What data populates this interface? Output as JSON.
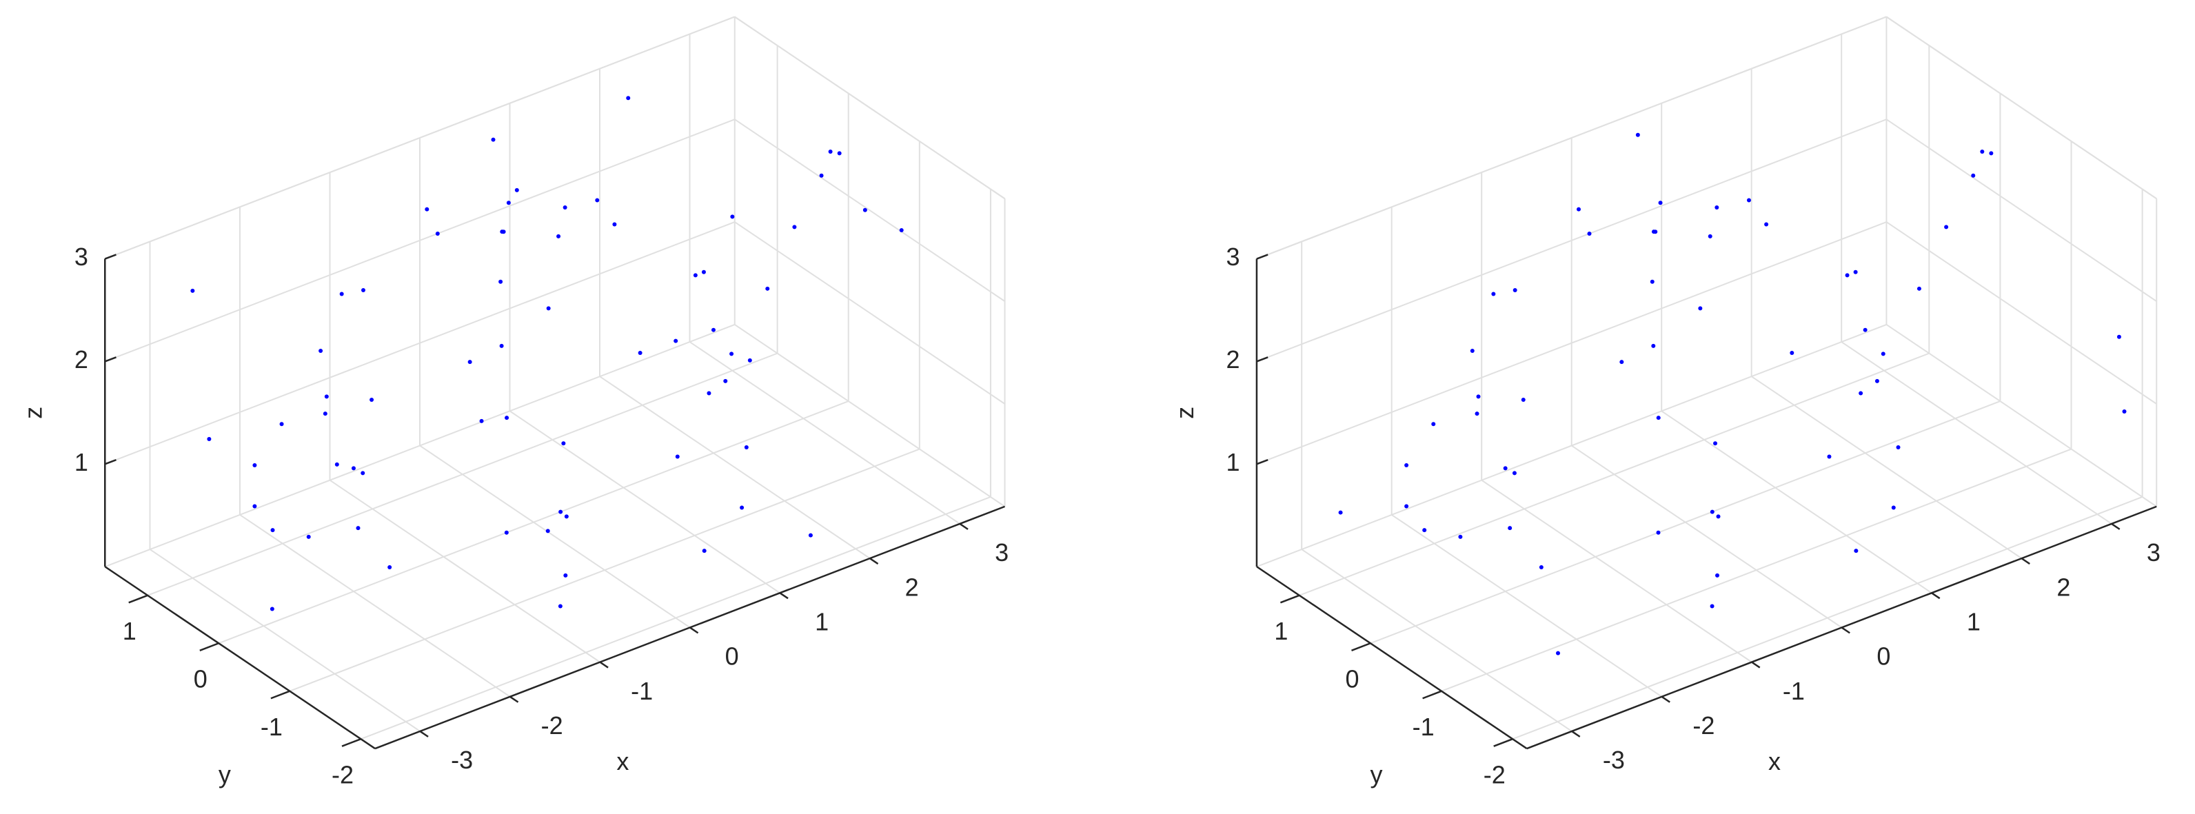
{
  "chart_data": [
    {
      "type": "scatter3",
      "xlabel": "x",
      "ylabel": "y",
      "zlabel": "z",
      "xlim": [
        -3.5,
        3.5
      ],
      "ylim": [
        -2.2,
        1.6
      ],
      "zlim": [
        0,
        3
      ],
      "xticks": [
        -3,
        -2,
        -1,
        0,
        1,
        2,
        3
      ],
      "yticks": [
        -2,
        -1,
        0,
        1
      ],
      "zticks": [
        1,
        2,
        3
      ],
      "grid": true,
      "series": [
        {
          "color": "#0000ff",
          "x": [
            1.6,
            0.8,
            -0.8,
            -1.6,
            -0.8,
            0.8,
            1.95,
            0.98,
            -0.98,
            -1.95,
            -0.98,
            0.98,
            2,
            1,
            -1,
            -2,
            -1,
            1,
            1.8,
            0.9,
            -0.9,
            -1.8,
            -0.9,
            0.9,
            1.3,
            0,
            -1.3,
            -1.3,
            0,
            1.3,
            0.9,
            -0.45,
            -0.45,
            0.35,
            -0.35,
            0,
            0,
            0.3,
            -0.3,
            -2.3,
            -2.8,
            -3.1,
            -3.1,
            -2.9,
            -2.5,
            2.2,
            2.6,
            2.9,
            3.2,
            3.4,
            3.3,
            -3,
            2.5,
            0.5,
            -2,
            3,
            -3.3,
            1.5,
            2.8,
            -1,
            0,
            3.3,
            -2.5,
            1,
            -1.5,
            2
          ],
          "y": [
            0,
            1.39,
            1.39,
            0,
            -1.39,
            -1.39,
            0,
            1.69,
            1.69,
            0,
            -1.69,
            -1.69,
            0,
            1.73,
            1.73,
            0,
            -1.73,
            -1.73,
            0,
            1.56,
            1.56,
            0,
            -1.56,
            -1.56,
            0.75,
            1.5,
            0.75,
            -0.75,
            -1.5,
            -0.75,
            0,
            0.78,
            -0.78,
            0,
            0,
            0.35,
            -0.35,
            0,
            0,
            0,
            0,
            0,
            0,
            0,
            0,
            0,
            0,
            0,
            0,
            0,
            0,
            1,
            -1.5,
            1.2,
            -1.8,
            1,
            -0.5,
            -2,
            0.5,
            1.5,
            -2,
            -1,
            1.4,
            1.5,
            -2.1,
            1.2
          ],
          "z": [
            0.1,
            0.1,
            0.1,
            0.1,
            0.1,
            0.1,
            0.6,
            0.6,
            0.6,
            0.6,
            0.6,
            0.6,
            1.2,
            1.2,
            1.2,
            1.2,
            1.2,
            1.2,
            1.8,
            1.8,
            1.8,
            1.8,
            1.8,
            1.8,
            2.35,
            2.35,
            2.35,
            2.35,
            2.35,
            2.35,
            2.6,
            2.6,
            2.6,
            2.95,
            2.95,
            2.95,
            2.95,
            0,
            0,
            2.0,
            1.9,
            1.6,
            1.2,
            0.9,
            0.7,
            0.9,
            1.4,
            1.9,
            2.3,
            2.45,
            2.5,
            2.8,
            2.9,
            3.0,
            2.5,
            1.5,
            0.5,
            0.3,
            0.4,
            0.2,
            2.7,
            2.2,
            1.0,
            2.2,
            1.4,
            2.9
          ]
        }
      ]
    },
    {
      "type": "scatter3",
      "xlabel": "x",
      "ylabel": "y",
      "zlabel": "z",
      "xlim": [
        -3.5,
        3.5
      ],
      "ylim": [
        -2.2,
        1.6
      ],
      "zlim": [
        0,
        3
      ],
      "xticks": [
        -3,
        -2,
        -1,
        0,
        1,
        2,
        3
      ],
      "yticks": [
        -2,
        -1,
        0,
        1
      ],
      "zticks": [
        1,
        2,
        3
      ],
      "grid": true,
      "series": [
        {
          "color": "#0000ff",
          "x": [
            1.6,
            0.8,
            -0.8,
            -1.6,
            -0.8,
            0.8,
            1.95,
            0.98,
            -0.98,
            -1.95,
            -0.98,
            0.98,
            2,
            1,
            -1,
            -2,
            -1,
            1,
            1.8,
            0.9,
            -0.9,
            -1.8,
            -0.9,
            0.9,
            1.3,
            0,
            -1.3,
            -1.3,
            0,
            1.3,
            0.9,
            -0.45,
            -0.45,
            0.35,
            -0.35,
            0,
            0,
            0.3,
            -0.3,
            -2.3,
            -2.8,
            -3.1,
            -3.1,
            -2.9,
            -2.5,
            2.2,
            2.6,
            2.9,
            3.2,
            3.4,
            3.3,
            3.4,
            3.3,
            -3.2,
            0.5,
            -2.6
          ],
          "y": [
            0,
            1.39,
            1.39,
            0,
            -1.39,
            -1.39,
            0,
            1.69,
            1.69,
            0,
            -1.69,
            -1.69,
            0,
            1.73,
            1.73,
            0,
            -1.73,
            -1.73,
            0,
            1.56,
            1.56,
            0,
            -1.56,
            -1.56,
            0.75,
            1.5,
            0.75,
            -0.75,
            -1.5,
            -0.75,
            0,
            0.78,
            -0.78,
            0,
            0,
            0.35,
            -0.35,
            0,
            0,
            0,
            0,
            0,
            0,
            0,
            0,
            0,
            0,
            0,
            0,
            0,
            0,
            -1.8,
            -2,
            0.8,
            1.3,
            -1.5
          ],
          "z": [
            0.1,
            0.1,
            0.1,
            0.1,
            0.1,
            0.1,
            0.6,
            0.6,
            0.6,
            0.6,
            0.6,
            0.6,
            1.2,
            1.2,
            1.2,
            1.2,
            1.2,
            1.2,
            1.8,
            1.8,
            1.8,
            1.8,
            1.8,
            1.8,
            2.35,
            2.35,
            2.35,
            2.35,
            2.35,
            2.35,
            2.6,
            2.6,
            2.6,
            2.95,
            2.95,
            2.95,
            2.95,
            0,
            0,
            2.0,
            1.9,
            1.6,
            1.2,
            0.9,
            0.7,
            0.9,
            1.4,
            1.9,
            2.3,
            2.45,
            2.5,
            1.5,
            0.9,
            0.8,
            3.0,
            0.3
          ]
        }
      ]
    }
  ]
}
